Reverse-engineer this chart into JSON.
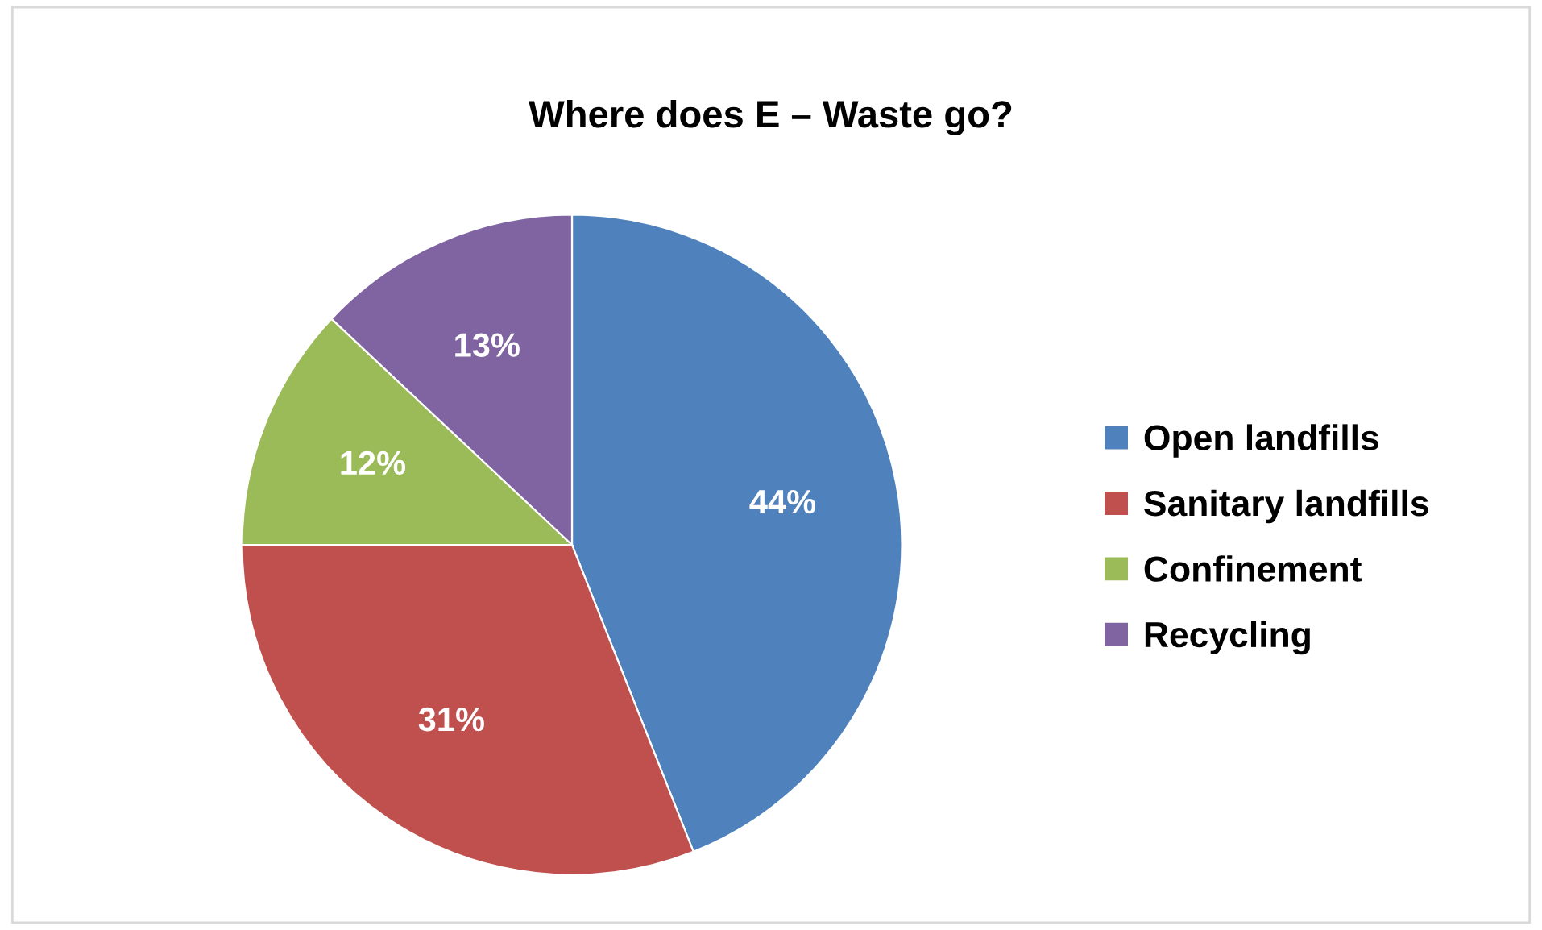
{
  "chart_data": {
    "type": "pie",
    "title": "Where does E – Waste go?",
    "categories": [
      "Open landfills",
      "Sanitary landfills",
      "Confinement",
      "Recycling"
    ],
    "values": [
      44,
      31,
      12,
      13
    ],
    "colors": [
      "#4f81bd",
      "#c0504d",
      "#9bbb59",
      "#8064a2"
    ],
    "value_labels": [
      "44%",
      "31%",
      "12%",
      "13%"
    ],
    "legend": "right"
  }
}
